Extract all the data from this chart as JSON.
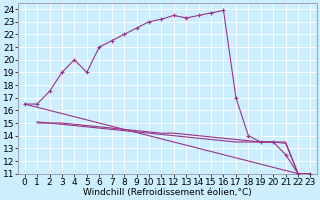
{
  "xlabel": "Windchill (Refroidissement éolien,°C)",
  "bg_color": "#cceeff",
  "grid_color": "#ffffff",
  "line_color": "#993388",
  "xlim": [
    -0.5,
    23.5
  ],
  "ylim": [
    11,
    24.5
  ],
  "xticks": [
    0,
    1,
    2,
    3,
    4,
    5,
    6,
    7,
    8,
    9,
    10,
    11,
    12,
    13,
    14,
    15,
    16,
    17,
    18,
    19,
    20,
    21,
    22,
    23
  ],
  "yticks": [
    11,
    12,
    13,
    14,
    15,
    16,
    17,
    18,
    19,
    20,
    21,
    22,
    23,
    24
  ],
  "series0_x": [
    0,
    1,
    2,
    3,
    4,
    5,
    6,
    7,
    8,
    9,
    10,
    11,
    12,
    13,
    14,
    15,
    16,
    17,
    18,
    19,
    20,
    21,
    22,
    23
  ],
  "series0_y": [
    16.5,
    16.5,
    17.5,
    19.0,
    20.0,
    19.0,
    21.0,
    21.5,
    22.0,
    22.5,
    23.0,
    23.2,
    23.5,
    23.3,
    23.5,
    23.7,
    23.9,
    17.0,
    14.0,
    13.5,
    13.5,
    12.5,
    11.0,
    11.0
  ],
  "series1_x": [
    0,
    22
  ],
  "series1_y": [
    16.5,
    11.0
  ],
  "series2_x": [
    1,
    2,
    3,
    4,
    5,
    6,
    7,
    8,
    9,
    10,
    11,
    12,
    13,
    14,
    15,
    16,
    17,
    19,
    20,
    21,
    22,
    23
  ],
  "series2_y": [
    15.1,
    15.0,
    14.9,
    14.8,
    14.7,
    14.6,
    14.5,
    14.4,
    14.3,
    14.2,
    14.1,
    14.0,
    13.9,
    13.8,
    13.7,
    13.6,
    13.5,
    13.5,
    13.5,
    13.5,
    11.0,
    11.0
  ],
  "series3_x": [
    1,
    2,
    3,
    4,
    5,
    6,
    7,
    8,
    9,
    10,
    11,
    12,
    13,
    14,
    15,
    16,
    17,
    19,
    20,
    21,
    22,
    23
  ],
  "series3_y": [
    15.0,
    15.0,
    15.0,
    14.9,
    14.8,
    14.7,
    14.6,
    14.5,
    14.4,
    14.3,
    14.2,
    14.2,
    14.1,
    14.0,
    13.9,
    13.8,
    13.7,
    13.5,
    13.5,
    13.4,
    11.0,
    11.0
  ],
  "font_size": 6.5
}
